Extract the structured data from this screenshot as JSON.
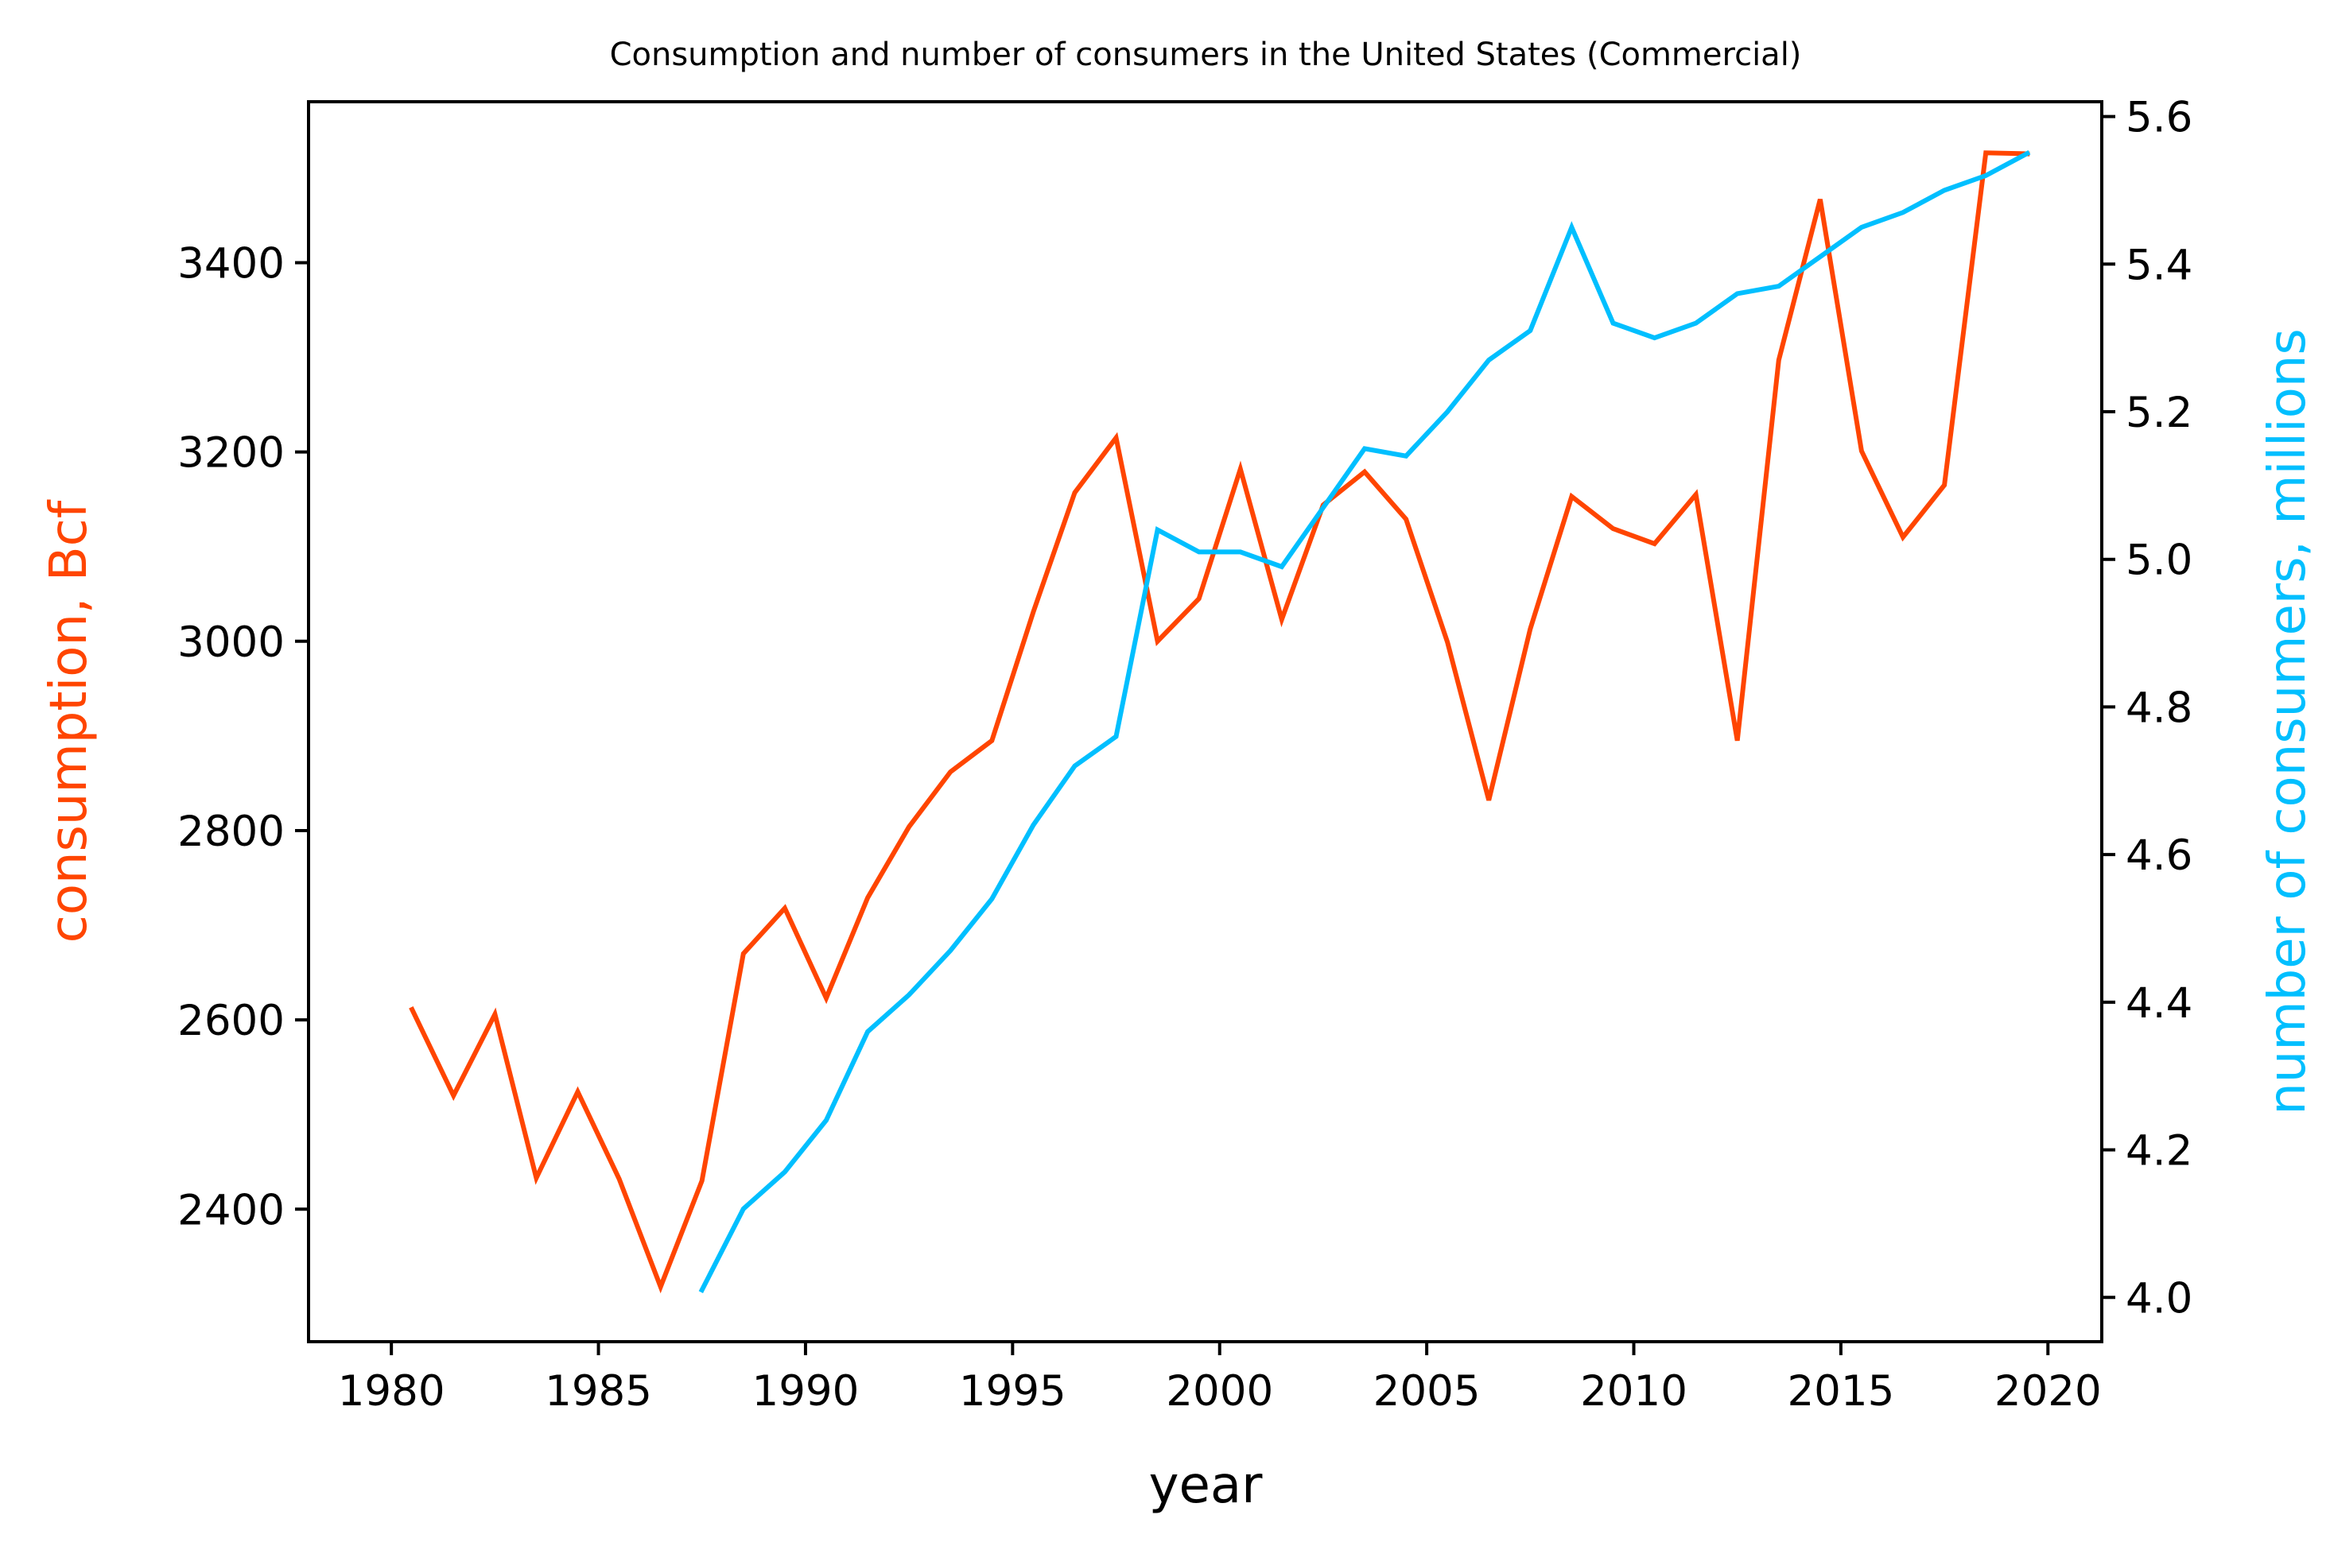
{
  "chart_data": {
    "type": "line",
    "title": "Consumption and number of consumers in the United States (Commercial)",
    "xlabel": "year",
    "ylabel_left": "consumption, Bcf",
    "ylabel_right": "number of consumers, millions",
    "xlim": [
      1978,
      2021.3
    ],
    "ylim_left": [
      2260,
      3570
    ],
    "ylim_right": [
      3.94,
      5.62
    ],
    "x_ticks": [
      1980,
      1985,
      1990,
      1995,
      2000,
      2005,
      2010,
      2015,
      2020
    ],
    "y_ticks_left": [
      2400,
      2600,
      2800,
      3000,
      3200,
      3400
    ],
    "y_ticks_right": [
      4.0,
      4.2,
      4.4,
      4.6,
      4.8,
      5.0,
      5.2,
      5.4,
      5.6
    ],
    "grid": false,
    "colors": {
      "consumption": "#ff4500",
      "consumers": "#00bfff"
    },
    "series": [
      {
        "axis": "left",
        "color": "#ff4500",
        "x": [
          1980.5,
          1981.5,
          1982.5,
          1983.5,
          1984.5,
          1985.5,
          1986.5,
          1987.5,
          1988.5,
          1989.5,
          1990.5,
          1991.5,
          1992.5,
          1993.5,
          1994.5,
          1995.5,
          1996.5,
          1997.5,
          1998.5,
          1999.5,
          2000.5,
          2001.5,
          2002.5,
          2003.5,
          2004.5,
          2005.5,
          2006.5,
          2007.5,
          2008.5,
          2009.5,
          2010.5,
          2011.5,
          2012.5,
          2013.5,
          2014.5,
          2015.5,
          2016.5,
          2017.5,
          2018.5,
          2019.5
        ],
        "values": [
          2611,
          2520,
          2606,
          2433,
          2524,
          2432,
          2318,
          2430,
          2670,
          2718,
          2623,
          2729,
          2804,
          2862,
          2895,
          3031,
          3157,
          3215,
          3000,
          3045,
          3182,
          3023,
          3144,
          3179,
          3129,
          2999,
          2832,
          3013,
          3153,
          3119,
          3103,
          3155,
          2895,
          3297,
          3467,
          3201,
          3110,
          3165,
          3516,
          3515
        ]
      },
      {
        "axis": "right",
        "color": "#00bfff",
        "x": [
          1987.5,
          1988.5,
          1989.5,
          1990.5,
          1991.5,
          1992.5,
          1993.5,
          1994.5,
          1995.5,
          1996.5,
          1997.5,
          1998.5,
          1999.5,
          2000.5,
          2001.5,
          2002.5,
          2003.5,
          2004.5,
          2005.5,
          2006.5,
          2007.5,
          2008.5,
          2009.5,
          2010.5,
          2011.5,
          2012.5,
          2013.5,
          2014.5,
          2015.5,
          2016.5,
          2017.5,
          2018.5,
          2019.5
        ],
        "values": [
          4.01,
          4.12,
          4.17,
          4.24,
          4.36,
          4.41,
          4.47,
          4.54,
          4.64,
          4.72,
          4.76,
          5.04,
          5.01,
          5.01,
          4.99,
          5.07,
          5.15,
          5.14,
          5.2,
          5.27,
          5.31,
          5.45,
          5.32,
          5.3,
          5.32,
          5.36,
          5.37,
          5.41,
          5.45,
          5.47,
          5.5,
          5.52,
          5.55
        ]
      }
    ]
  }
}
